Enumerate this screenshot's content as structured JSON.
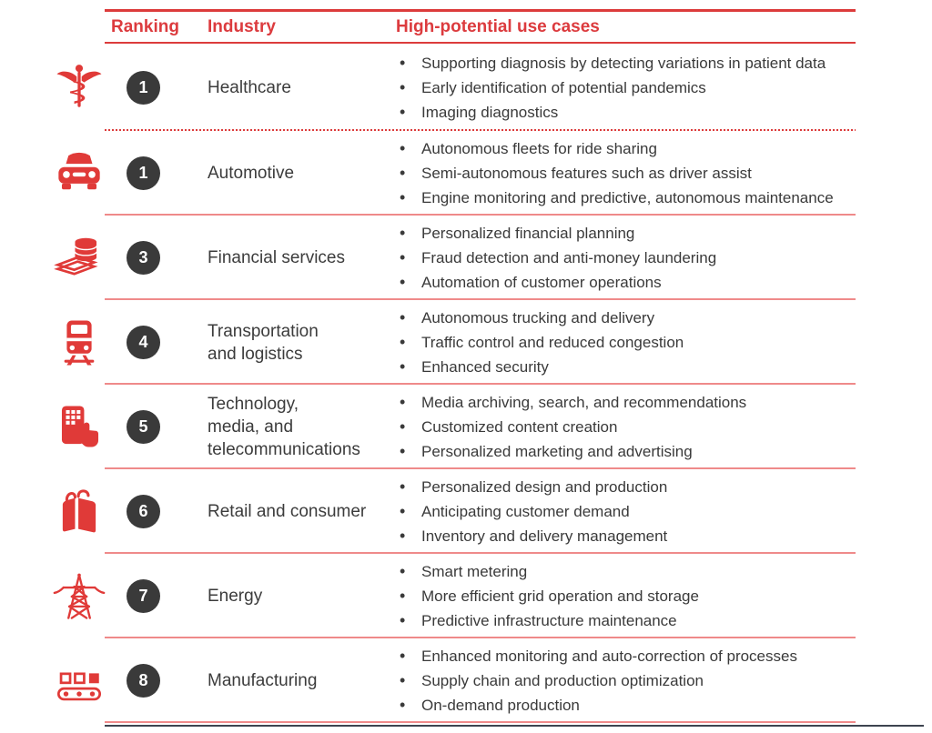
{
  "colors": {
    "accent_red": "#dc3b3e",
    "icon_red": "#e03a38",
    "separator_salmon": "#ef8a8a",
    "badge_dark": "#3a3a3a",
    "body_text": "#3a3a3a",
    "bottom_rule_dark": "#3d4450"
  },
  "header": {
    "ranking": "Ranking",
    "industry": "Industry",
    "use_cases": "High-potential use cases"
  },
  "rows": [
    {
      "icon": "caduceus-icon",
      "rank": "1",
      "industry": "Healthcare",
      "separator": "dotted",
      "use_cases": [
        "Supporting diagnosis by detecting variations in patient data",
        "Early identification of potential pandemics",
        "Imaging diagnostics"
      ]
    },
    {
      "icon": "car-icon",
      "rank": "1",
      "industry": "Automotive",
      "separator": "solid",
      "use_cases": [
        "Autonomous fleets for ride sharing",
        "Semi-autonomous features such as driver assist",
        "Engine monitoring and predictive, autonomous maintenance"
      ]
    },
    {
      "icon": "coins-icon",
      "rank": "3",
      "industry": "Financial services",
      "separator": "solid",
      "use_cases": [
        "Personalized financial planning",
        "Fraud detection and anti-money laundering",
        "Automation of customer operations"
      ]
    },
    {
      "icon": "train-icon",
      "rank": "4",
      "industry": "Transportation\nand logistics",
      "separator": "solid",
      "use_cases": [
        "Autonomous trucking and delivery",
        "Traffic control and reduced congestion",
        "Enhanced security"
      ]
    },
    {
      "icon": "phone-tap-icon",
      "rank": "5",
      "industry": "Technology,\nmedia, and\ntelecommunications",
      "separator": "solid",
      "use_cases": [
        "Media archiving, search, and recommendations",
        "Customized content creation",
        "Personalized marketing and advertising"
      ]
    },
    {
      "icon": "shopping-bag-icon",
      "rank": "6",
      "industry": "Retail and consumer",
      "separator": "solid",
      "use_cases": [
        "Personalized design and production",
        "Anticipating customer demand",
        "Inventory and delivery management"
      ]
    },
    {
      "icon": "power-tower-icon",
      "rank": "7",
      "industry": "Energy",
      "separator": "solid",
      "use_cases": [
        "Smart metering",
        "More efficient grid operation and storage",
        "Predictive infrastructure maintenance"
      ]
    },
    {
      "icon": "conveyor-icon",
      "rank": "8",
      "industry": "Manufacturing",
      "separator": "solid",
      "use_cases": [
        "Enhanced monitoring and auto-correction of processes",
        "Supply chain and production optimization",
        "On-demand production"
      ]
    }
  ]
}
